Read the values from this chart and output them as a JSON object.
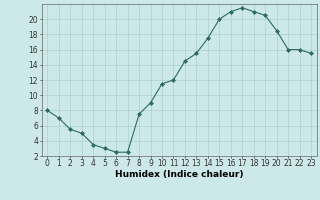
{
  "x": [
    0,
    1,
    2,
    3,
    4,
    5,
    6,
    7,
    8,
    9,
    10,
    11,
    12,
    13,
    14,
    15,
    16,
    17,
    18,
    19,
    20,
    21,
    22,
    23
  ],
  "y": [
    8,
    7,
    5.5,
    5,
    3.5,
    3,
    2.5,
    2.5,
    7.5,
    9,
    11.5,
    12,
    14.5,
    15.5,
    17.5,
    20,
    21,
    21.5,
    21,
    20.5,
    18.5,
    16,
    16,
    15.5
  ],
  "line_color": "#2d6b5e",
  "marker": "D",
  "marker_size": 2,
  "bg_color": "#cde8e8",
  "grid_color": "#aed0d0",
  "xlabel": "Humidex (Indice chaleur)",
  "ylabel": "",
  "xlim": [
    -0.5,
    23.5
  ],
  "ylim": [
    2,
    22
  ],
  "yticks": [
    2,
    4,
    6,
    8,
    10,
    12,
    14,
    16,
    18,
    20
  ],
  "xticks": [
    0,
    1,
    2,
    3,
    4,
    5,
    6,
    7,
    8,
    9,
    10,
    11,
    12,
    13,
    14,
    15,
    16,
    17,
    18,
    19,
    20,
    21,
    22,
    23
  ],
  "tick_fontsize": 5.5,
  "xlabel_fontsize": 6.5,
  "line_width": 0.8
}
